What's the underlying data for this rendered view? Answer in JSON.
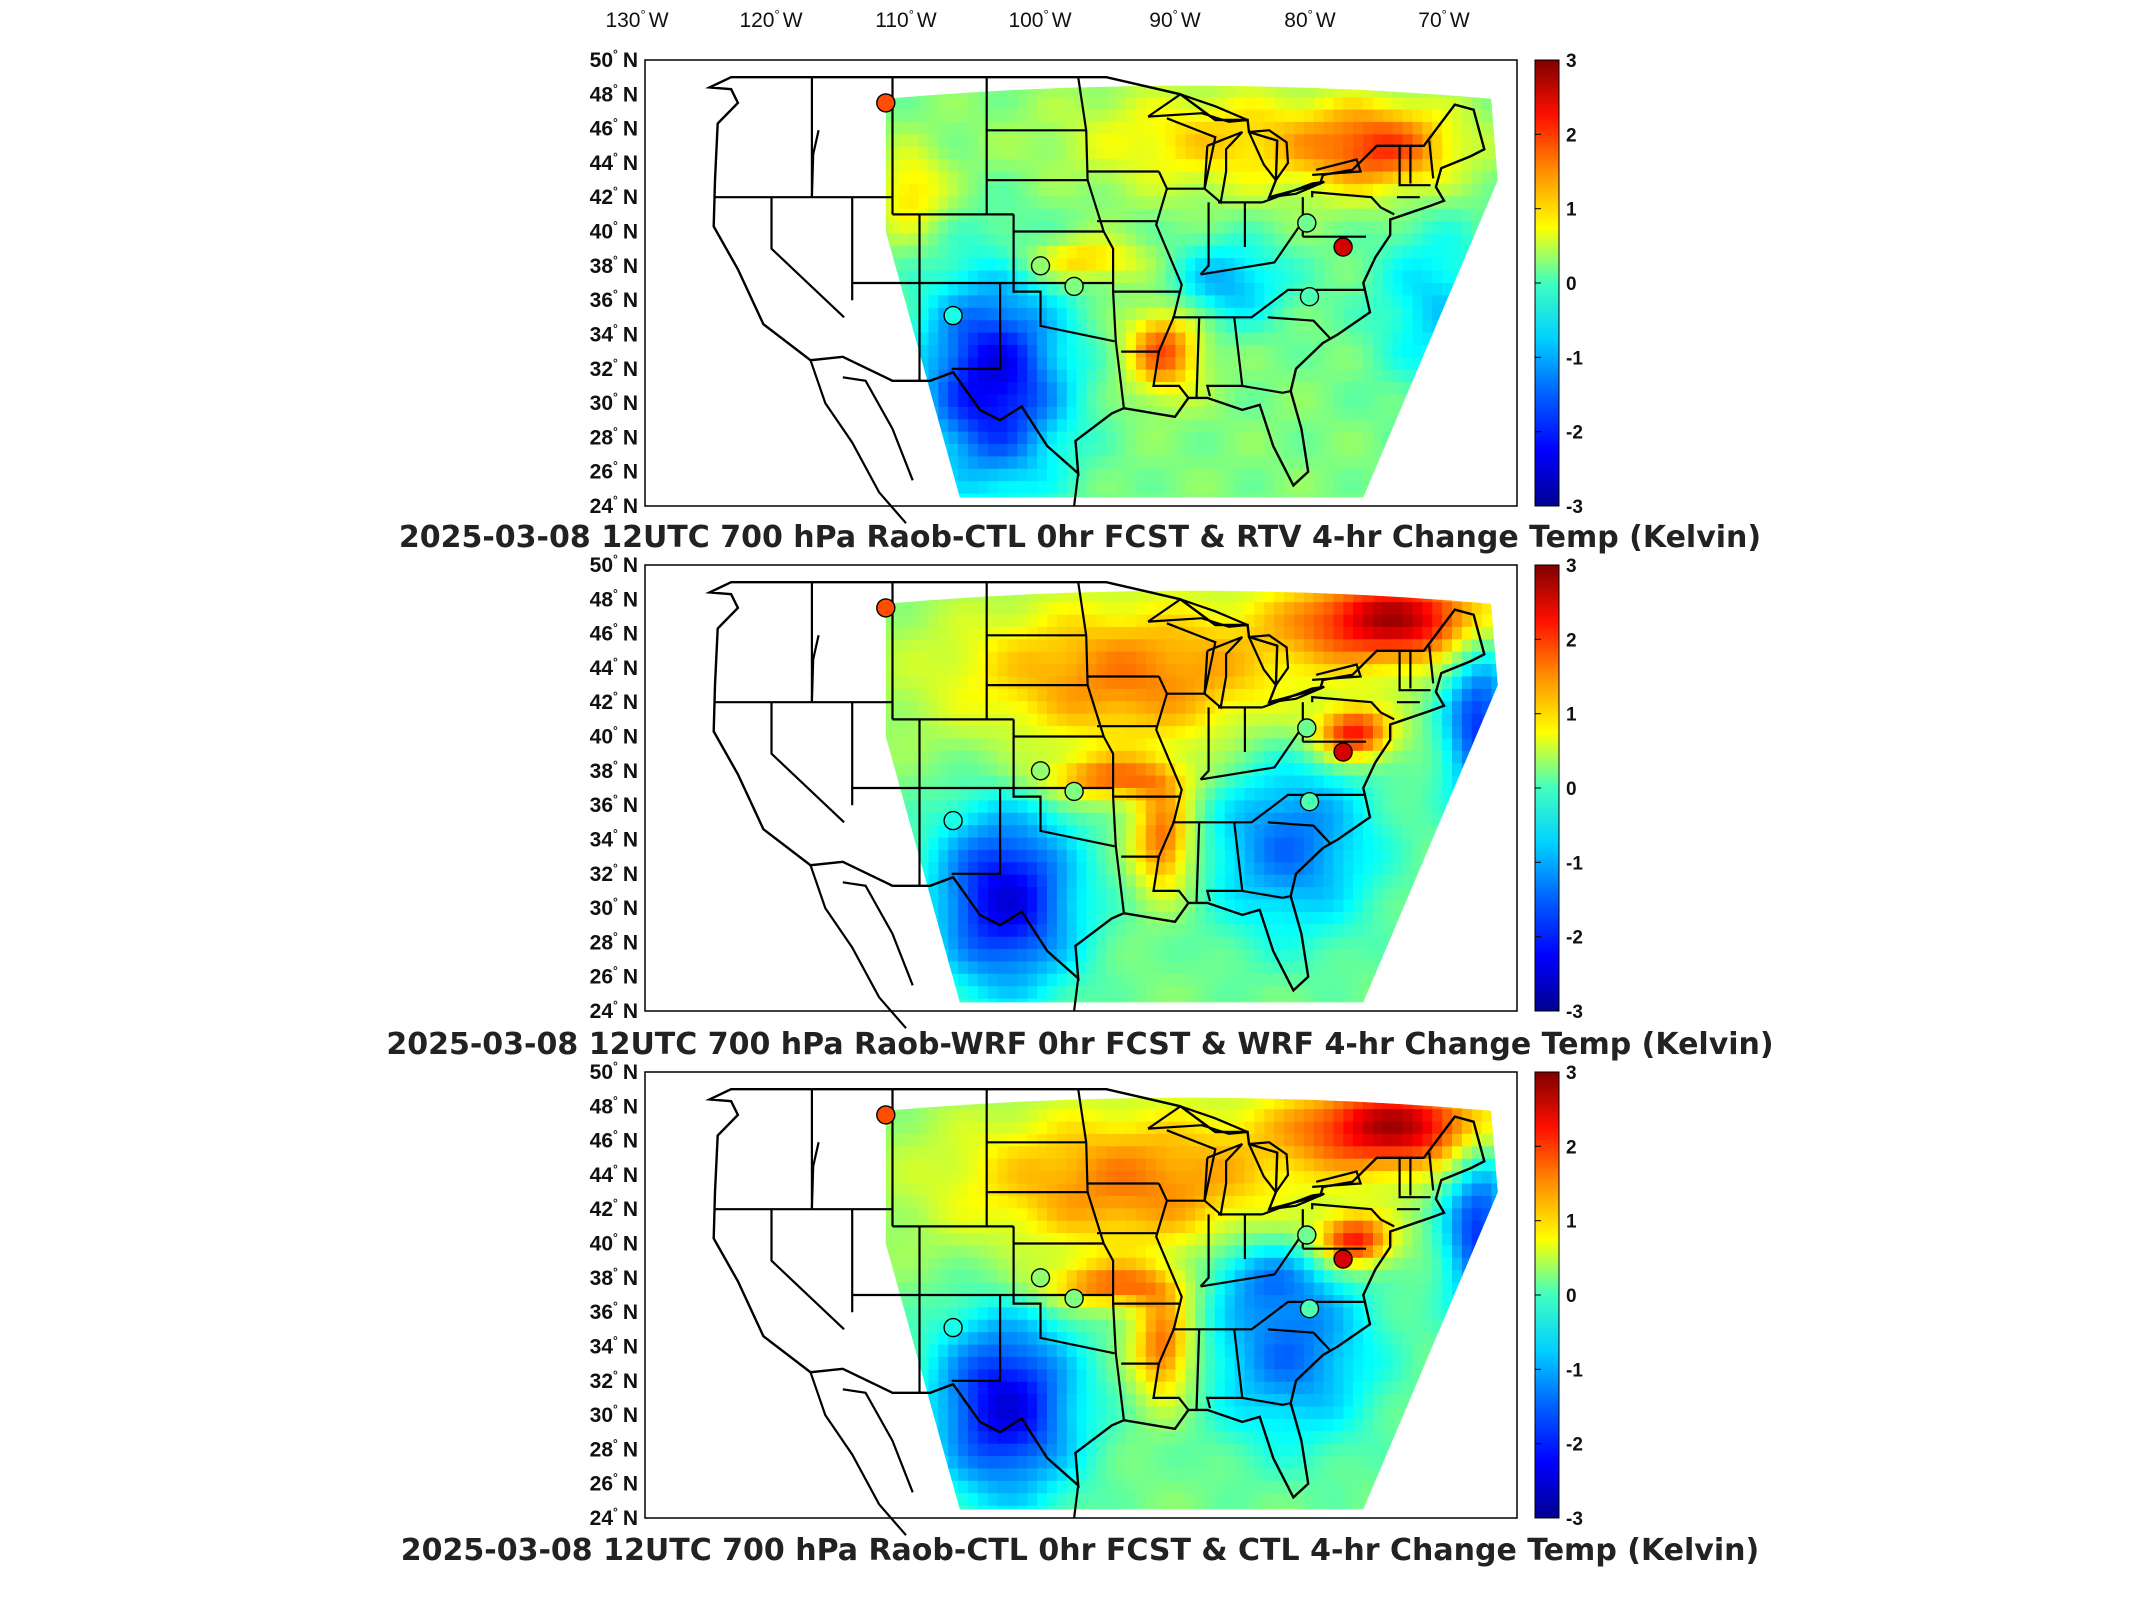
{
  "longitude_labels": [
    "130",
    "120",
    "110",
    "100",
    "90",
    "80",
    "70"
  ],
  "longitude_hemisphere": "W",
  "latitude_labels": [
    "50",
    "48",
    "46",
    "44",
    "42",
    "40",
    "38",
    "36",
    "34",
    "32",
    "30",
    "28",
    "26",
    "24"
  ],
  "latitude_hemisphere": "N",
  "degree_symbol": "°",
  "colorbar": {
    "ticks": [
      "3",
      "2",
      "1",
      "0",
      "-1",
      "-2",
      "-3"
    ],
    "range": [
      -3,
      3
    ],
    "colormap": "jet",
    "colors": [
      "#00008f",
      "#0000ff",
      "#00a0ff",
      "#3fffbf",
      "#ffff00",
      "#ff7f00",
      "#ff0000",
      "#800000"
    ]
  },
  "panels": [
    {
      "title": "2025-03-08 12UTC 700 hPa Raob-CTL 0hr FCST & RTV 4-hr Change Temp (Kelvin)",
      "field_pattern": "rtv"
    },
    {
      "title": "2025-03-08 12UTC 700 hPa Raob-WRF 0hr FCST & WRF 4-hr Change Temp (Kelvin)",
      "field_pattern": "wrf"
    },
    {
      "title": "2025-03-08 12UTC 700 hPa Raob-CTL 0hr FCST & CTL 4-hr Change Temp (Kelvin)",
      "field_pattern": "ctl"
    }
  ],
  "raob_markers": [
    {
      "lon": -111.5,
      "lat": 47.5,
      "value": 1.8
    },
    {
      "lon": -106.5,
      "lat": 35.1,
      "value": -0.6
    },
    {
      "lon": -100.0,
      "lat": 38.0,
      "value": 0.1
    },
    {
      "lon": -97.5,
      "lat": 36.8,
      "value": 0.0
    },
    {
      "lon": -80.2,
      "lat": 40.5,
      "value": -0.1
    },
    {
      "lon": -77.5,
      "lat": 39.1,
      "value": 2.5
    },
    {
      "lon": -80.0,
      "lat": 36.2,
      "value": -0.3
    }
  ]
}
